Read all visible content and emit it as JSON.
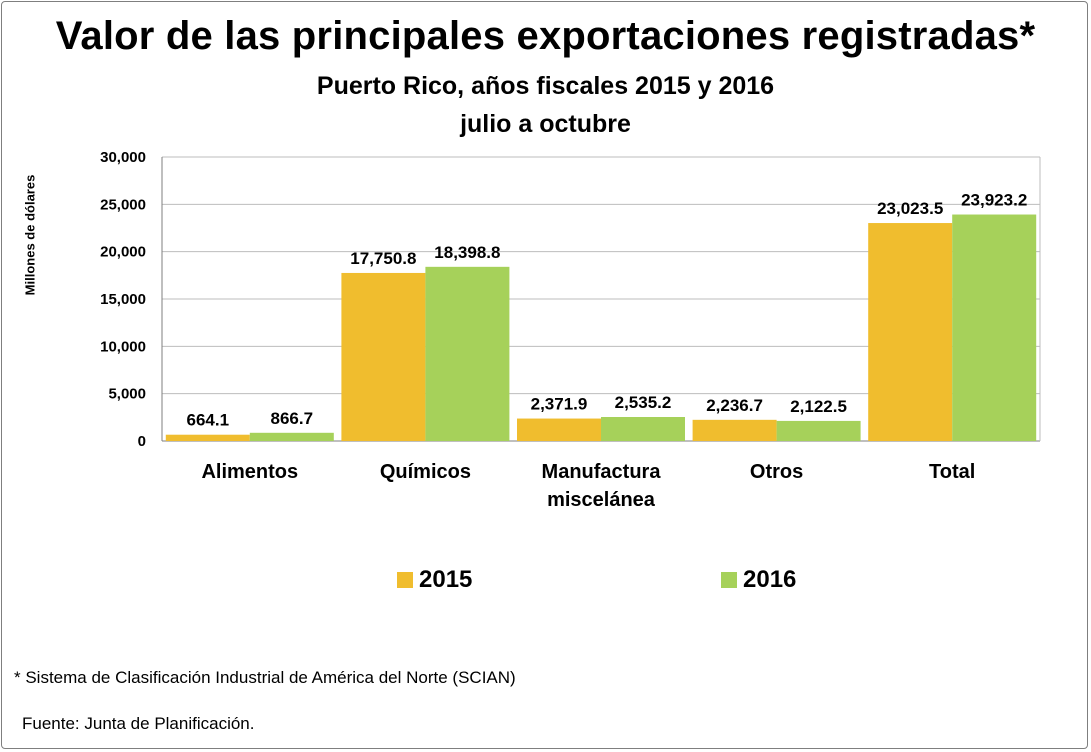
{
  "title": "Valor de las principales exportaciones registradas*",
  "subtitle": "Puerto Rico, años fiscales 2015 y 2016",
  "subtitle2": "julio a octubre",
  "footnote": "* Sistema de Clasificación Industrial de América del Norte (SCIAN)",
  "source": "Fuente: Junta de Planificación.",
  "colors": {
    "s2015": "#f0bd2e",
    "s2016": "#a6d15a",
    "grid": "#bdbdbd",
    "axis": "#7f7f7f"
  },
  "chart_data": {
    "type": "bar",
    "ylabel": "Millones de dólares",
    "ylim": [
      0,
      30000
    ],
    "yticks": [
      0,
      5000,
      10000,
      15000,
      20000,
      25000,
      30000
    ],
    "ytick_labels": [
      "0",
      "5,000",
      "10,000",
      "15,000",
      "20,000",
      "25,000",
      "30,000"
    ],
    "grid": true,
    "legend_position": "bottom",
    "categories": [
      {
        "line1": "Alimentos",
        "line2": ""
      },
      {
        "line1": "Químicos",
        "line2": ""
      },
      {
        "line1": "Manufactura",
        "line2": "miscelánea"
      },
      {
        "line1": "Otros",
        "line2": ""
      },
      {
        "line1": "Total",
        "line2": ""
      }
    ],
    "series": [
      {
        "name": "2015",
        "values": [
          664.1,
          17750.8,
          2371.9,
          2236.7,
          23023.5
        ],
        "labels": [
          "664.1",
          "17,750.8",
          "2,371.9",
          "2,236.7",
          "23,023.5"
        ]
      },
      {
        "name": "2016",
        "values": [
          866.7,
          18398.8,
          2535.2,
          2122.5,
          23923.2
        ],
        "labels": [
          "866.7",
          "18,398.8",
          "2,535.2",
          "2,122.5",
          "23,923.2"
        ]
      }
    ]
  }
}
